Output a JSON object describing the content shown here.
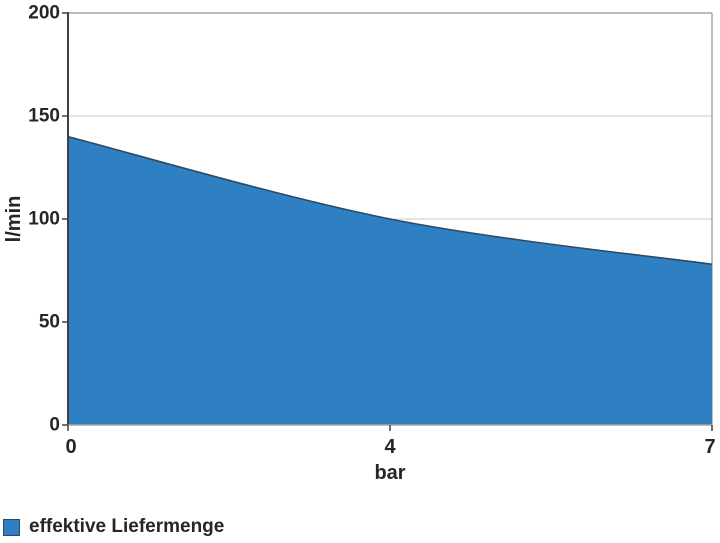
{
  "chart_data": {
    "type": "area",
    "smoothed": true,
    "categories": [
      "0",
      "4",
      "7"
    ],
    "series": [
      {
        "name": "effektive Liefermenge",
        "values": [
          140,
          100,
          78
        ]
      }
    ],
    "title": "",
    "xlabel": "bar",
    "ylabel": "l/min",
    "ylim": [
      0,
      200
    ],
    "yticks": [
      0,
      50,
      100,
      150,
      200
    ],
    "grid": "horizontal",
    "legend_position": "bottom-left",
    "colors": {
      "area_fill": "#2E80C3",
      "area_line": "#2B4A66",
      "axis_dark": "#404040",
      "axis_light": "#A6A6A6",
      "gridline": "#C9C9C9",
      "text": "#262626"
    }
  },
  "axes": {
    "y_tick_labels": [
      "200",
      "150",
      "100",
      "50",
      "0"
    ],
    "x_tick_labels": [
      "0",
      "4",
      "7"
    ],
    "y_title": "l/min",
    "x_title": "bar"
  },
  "legend": {
    "items": [
      {
        "label": "effektive Liefermenge",
        "color": "#2E80C3"
      }
    ]
  }
}
